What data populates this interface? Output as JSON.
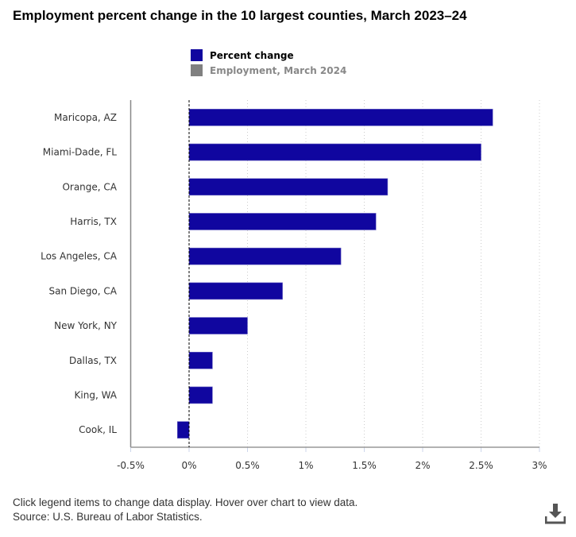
{
  "chart_data": {
    "type": "bar",
    "orientation": "horizontal",
    "title": "Employment percent change in the 10 largest counties, March 2023–24",
    "categories": [
      "Maricopa, AZ",
      "Miami-Dade, FL",
      "Orange, CA",
      "Harris, TX",
      "Los Angeles, CA",
      "San Diego, CA",
      "New York, NY",
      "Dallas, TX",
      "King, WA",
      "Cook, IL"
    ],
    "series": [
      {
        "name": "Percent change",
        "color": "#10069f",
        "active": true,
        "values": [
          2.6,
          2.5,
          1.7,
          1.6,
          1.3,
          0.8,
          0.5,
          0.2,
          0.2,
          -0.1
        ]
      },
      {
        "name": "Employment, March 2024",
        "color": "#808080",
        "active": false
      }
    ],
    "xlim": [
      -0.5,
      3
    ],
    "xticks": [
      -0.5,
      0,
      0.5,
      1,
      1.5,
      2,
      2.5,
      3
    ],
    "xtick_labels": [
      "-0.5%",
      "0%",
      "0.5%",
      "1%",
      "1.5%",
      "2%",
      "2.5%",
      "3%"
    ],
    "grid": "vertical dotted",
    "legend": "top-center"
  },
  "footer": {
    "note": "Click legend items to change data display. Hover over chart to view data.",
    "source": "Source: U.S. Bureau of Labor Statistics."
  },
  "icons": {
    "download": "download-icon"
  }
}
